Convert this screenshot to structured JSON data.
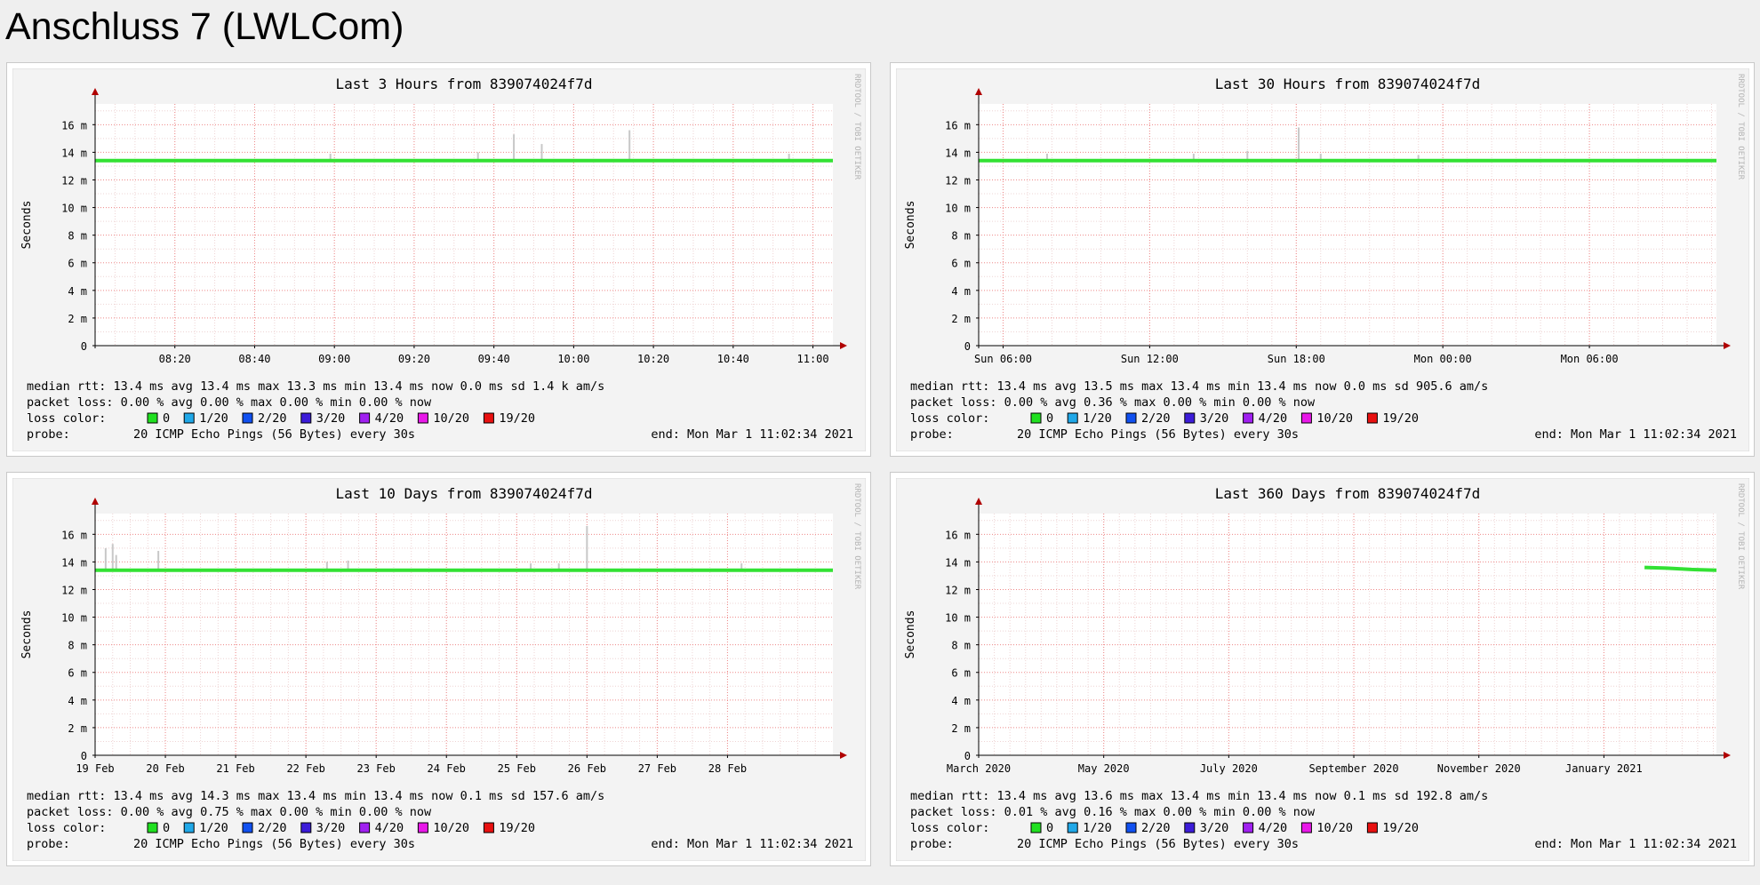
{
  "page": {
    "title": "Anschluss 7 (LWLCom)"
  },
  "colors": {
    "background": "#f3f3f3",
    "grid_minor": "#eed4d4",
    "grid_major": "#ee8888",
    "line": "#33e133",
    "smoke": "#c8c8c8",
    "axis": "#000000"
  },
  "common": {
    "ylabel": "Seconds",
    "ytick_labels": [
      "0",
      "2 m",
      "4 m",
      "6 m",
      "8 m",
      "10 m",
      "12 m",
      "14 m",
      "16 m"
    ],
    "watermark": "RRDTOOL / TOBI OETIKER",
    "loss_color_label": "loss color:",
    "loss_legend": [
      {
        "label": "0",
        "color": "#20e020"
      },
      {
        "label": "1/20",
        "color": "#20a8e8"
      },
      {
        "label": "2/20",
        "color": "#1050f0"
      },
      {
        "label": "3/20",
        "color": "#3c1cd8"
      },
      {
        "label": "4/20",
        "color": "#a020f0"
      },
      {
        "label": "10/20",
        "color": "#e818e8"
      },
      {
        "label": "19/20",
        "color": "#e81010"
      }
    ],
    "probe_label": "probe:",
    "probe_text": "20 ICMP Echo Pings (56 Bytes) every 30s",
    "end_text": "end: Mon Mar  1 11:02:34 2021"
  },
  "panels": [
    {
      "title": "Last 3 Hours from 839074024f7d",
      "rtt_line": "median rtt:  13.4 ms avg  13.4 ms max  13.3 ms min  13.4 ms now  0.0 ms sd  1.4 k am/s",
      "loss_line": "packet loss: 0.00 % avg  0.00 % max  0.00 % min  0.00 % now"
    },
    {
      "title": "Last 30 Hours from 839074024f7d",
      "rtt_line": "median rtt:  13.4 ms avg  13.5 ms max  13.4 ms min  13.4 ms now  0.0 ms sd  905.6   am/s",
      "loss_line": "packet loss: 0.00 % avg  0.36 % max  0.00 % min  0.00 % now"
    },
    {
      "title": "Last 10 Days from 839074024f7d",
      "rtt_line": "median rtt:  13.4 ms avg  14.3 ms max  13.4 ms min  13.4 ms now  0.1 ms sd  157.6   am/s",
      "loss_line": "packet loss: 0.00 % avg  0.75 % max  0.00 % min  0.00 % now"
    },
    {
      "title": "Last 360 Days from 839074024f7d",
      "rtt_line": "median rtt:  13.4 ms avg  13.6 ms max  13.4 ms min  13.4 ms now  0.1 ms sd  192.8   am/s",
      "loss_line": "packet loss: 0.01 % avg  0.16 % max  0.00 % min  0.00 % now"
    }
  ],
  "chart_data": [
    {
      "type": "line",
      "title": "Last 3 Hours from 839074024f7d",
      "ylabel": "Seconds",
      "ylim_ms": [
        0,
        17.5
      ],
      "yticks_ms": [
        0,
        2,
        4,
        6,
        8,
        10,
        12,
        14,
        16
      ],
      "xlim": [
        "08:00",
        "11:05"
      ],
      "xticks": [
        {
          "label": "08:20",
          "pos": 20
        },
        {
          "label": "08:40",
          "pos": 40
        },
        {
          "label": "09:00",
          "pos": 60
        },
        {
          "label": "09:20",
          "pos": 80
        },
        {
          "label": "09:40",
          "pos": 100
        },
        {
          "label": "10:00",
          "pos": 120
        },
        {
          "label": "10:20",
          "pos": 140
        },
        {
          "label": "10:40",
          "pos": 160
        },
        {
          "label": "11:00",
          "pos": 180
        }
      ],
      "x_units": "minutes since 08:00",
      "xmax": 185,
      "minor_step": 5,
      "median_ms": [
        [
          0,
          13.4
        ],
        [
          20,
          13.4
        ],
        [
          40,
          13.4
        ],
        [
          60,
          13.4
        ],
        [
          80,
          13.4
        ],
        [
          100,
          13.4
        ],
        [
          120,
          13.4
        ],
        [
          140,
          13.4
        ],
        [
          160,
          13.4
        ],
        [
          185,
          13.4
        ]
      ],
      "spikes_ms": [
        [
          59,
          13.9
        ],
        [
          96,
          14.0
        ],
        [
          105,
          15.3
        ],
        [
          112,
          14.6
        ],
        [
          134,
          15.6
        ],
        [
          174,
          13.9
        ]
      ],
      "grid": true
    },
    {
      "type": "line",
      "title": "Last 30 Hours from 839074024f7d",
      "ylabel": "Seconds",
      "ylim_ms": [
        0,
        17.5
      ],
      "yticks_ms": [
        0,
        2,
        4,
        6,
        8,
        10,
        12,
        14,
        16
      ],
      "xticks": [
        {
          "label": "Sun 06:00",
          "pos": 1
        },
        {
          "label": "Sun 12:00",
          "pos": 7
        },
        {
          "label": "Sun 18:00",
          "pos": 13
        },
        {
          "label": "Mon 00:00",
          "pos": 19
        },
        {
          "label": "Mon 06:00",
          "pos": 25
        }
      ],
      "x_units": "hours since Sun 05:00",
      "xmax": 30.2,
      "minor_step": 1,
      "median_ms": [
        [
          0,
          13.4
        ],
        [
          5,
          13.4
        ],
        [
          10,
          13.4
        ],
        [
          15,
          13.4
        ],
        [
          20,
          13.4
        ],
        [
          25,
          13.4
        ],
        [
          30.2,
          13.4
        ]
      ],
      "spikes_ms": [
        [
          2.8,
          13.9
        ],
        [
          8.8,
          13.9
        ],
        [
          11,
          14.1
        ],
        [
          13.1,
          15.8
        ],
        [
          14,
          13.9
        ],
        [
          18,
          13.8
        ]
      ],
      "grid": true
    },
    {
      "type": "line",
      "title": "Last 10 Days from 839074024f7d",
      "ylabel": "Seconds",
      "ylim_ms": [
        0,
        17.5
      ],
      "yticks_ms": [
        0,
        2,
        4,
        6,
        8,
        10,
        12,
        14,
        16
      ],
      "xticks": [
        {
          "label": "19 Feb",
          "pos": 0
        },
        {
          "label": "20 Feb",
          "pos": 1
        },
        {
          "label": "21 Feb",
          "pos": 2
        },
        {
          "label": "22 Feb",
          "pos": 3
        },
        {
          "label": "23 Feb",
          "pos": 4
        },
        {
          "label": "24 Feb",
          "pos": 5
        },
        {
          "label": "25 Feb",
          "pos": 6
        },
        {
          "label": "26 Feb",
          "pos": 7
        },
        {
          "label": "27 Feb",
          "pos": 8
        },
        {
          "label": "28 Feb",
          "pos": 9
        }
      ],
      "x_units": "days since 19 Feb",
      "xmax": 10.5,
      "minor_step": 0.25,
      "median_ms": [
        [
          0,
          13.4
        ],
        [
          2,
          13.4
        ],
        [
          4,
          13.4
        ],
        [
          6,
          13.4
        ],
        [
          8,
          13.4
        ],
        [
          10.5,
          13.4
        ]
      ],
      "spikes_ms": [
        [
          0.15,
          15.0
        ],
        [
          0.25,
          15.3
        ],
        [
          0.3,
          14.5
        ],
        [
          0.9,
          14.8
        ],
        [
          3.3,
          14.0
        ],
        [
          3.6,
          14.1
        ],
        [
          6.2,
          13.9
        ],
        [
          6.6,
          13.9
        ],
        [
          7.0,
          16.6
        ],
        [
          9.2,
          13.9
        ]
      ],
      "grid": true
    },
    {
      "type": "line",
      "title": "Last 360 Days from 839074024f7d",
      "ylabel": "Seconds",
      "ylim_ms": [
        0,
        17.5
      ],
      "yticks_ms": [
        0,
        2,
        4,
        6,
        8,
        10,
        12,
        14,
        16
      ],
      "xticks": [
        {
          "label": "March 2020",
          "pos": 0
        },
        {
          "label": "May 2020",
          "pos": 2
        },
        {
          "label": "July 2020",
          "pos": 4
        },
        {
          "label": "September 2020",
          "pos": 6
        },
        {
          "label": "November 2020",
          "pos": 8
        },
        {
          "label": "January 2021",
          "pos": 10
        }
      ],
      "x_units": "months since March 2020",
      "xmax": 11.8,
      "minor_step": 0.25,
      "median_ms": [
        [
          10.65,
          13.6
        ],
        [
          11,
          13.55
        ],
        [
          11.4,
          13.45
        ],
        [
          11.8,
          13.4
        ]
      ],
      "spikes_ms": [],
      "grid": true
    }
  ]
}
